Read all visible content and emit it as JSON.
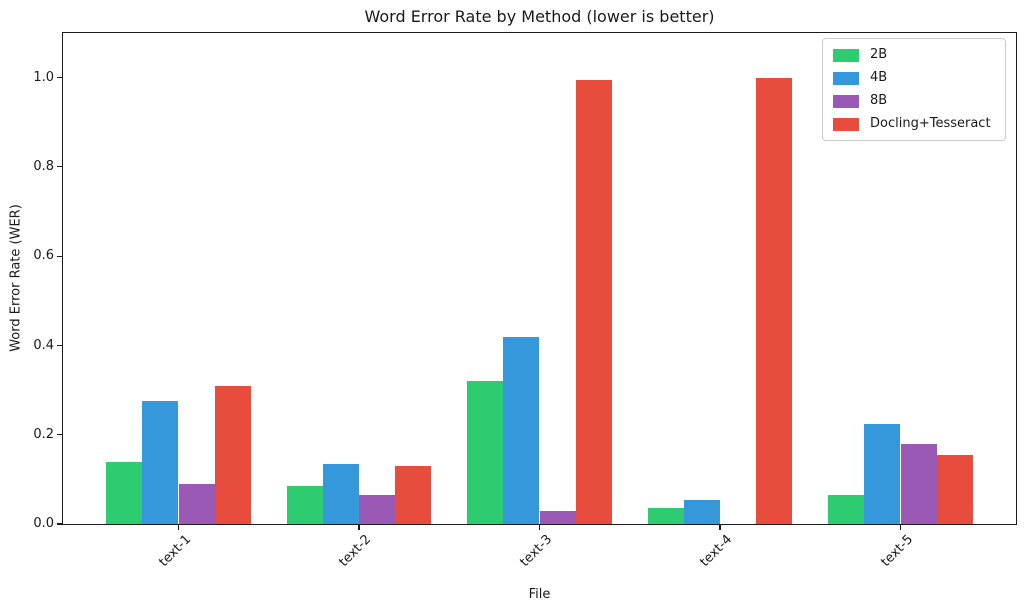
{
  "chart_data": {
    "type": "bar",
    "title": "Word Error Rate by Method (lower is better)",
    "xlabel": "File",
    "ylabel": "Word Error Rate (WER)",
    "categories": [
      "text-1",
      "text-2",
      "text-3",
      "text-4",
      "text-5"
    ],
    "series": [
      {
        "name": "2B",
        "color": "#2ecc71",
        "values": [
          0.14,
          0.085,
          0.32,
          0.035,
          0.065
        ]
      },
      {
        "name": "4B",
        "color": "#3498db",
        "values": [
          0.275,
          0.135,
          0.42,
          0.055,
          0.225
        ]
      },
      {
        "name": "8B",
        "color": "#9b59b6",
        "values": [
          0.09,
          0.065,
          0.03,
          0.0,
          0.18
        ]
      },
      {
        "name": "Docling+Tesseract",
        "color": "#e74c3c",
        "values": [
          0.31,
          0.13,
          0.995,
          1.0,
          0.155
        ]
      }
    ],
    "bar_width": 0.2,
    "ylim": [
      0,
      1.1
    ],
    "yticks": [
      0.0,
      0.2,
      0.4,
      0.6,
      0.8,
      1.0
    ],
    "ytick_format_decimals": 1,
    "grid": false,
    "legend_position": "upper right",
    "axis_color": "#1c1c1c",
    "background_color": "#ffffff"
  }
}
